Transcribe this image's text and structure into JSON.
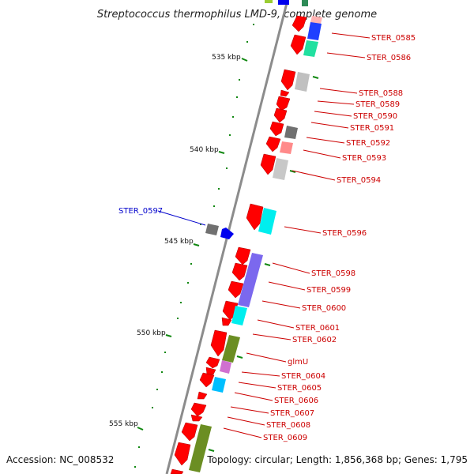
{
  "title": "Streptococcus thermophilus LMD-9, complete genome",
  "footer": {
    "accession": "Accession: NC_008532",
    "summary": "Topology: circular; Length: 1,856,368 bp; Genes: 1,795"
  },
  "colors": {
    "backbone": "#8c8c8c",
    "forward_gene": "#ff0000",
    "reverse_label": "#0000cc",
    "forward_label": "#cc0000",
    "tick": "#118811"
  },
  "kbp_ticks": [
    {
      "label": "535 kbp"
    },
    {
      "label": "540 kbp"
    },
    {
      "label": "545 kbp"
    },
    {
      "label": "550 kbp"
    },
    {
      "label": "555 kbp"
    }
  ],
  "genes": [
    {
      "label": "STER_0585",
      "strand": "forward"
    },
    {
      "label": "STER_0586",
      "strand": "forward"
    },
    {
      "label": "STER_0588",
      "strand": "forward"
    },
    {
      "label": "STER_0589",
      "strand": "forward"
    },
    {
      "label": "STER_0590",
      "strand": "forward"
    },
    {
      "label": "STER_0591",
      "strand": "forward"
    },
    {
      "label": "STER_0592",
      "strand": "forward"
    },
    {
      "label": "STER_0593",
      "strand": "forward"
    },
    {
      "label": "STER_0594",
      "strand": "forward"
    },
    {
      "label": "STER_0597",
      "strand": "reverse"
    },
    {
      "label": "STER_0596",
      "strand": "forward"
    },
    {
      "label": "STER_0598",
      "strand": "forward"
    },
    {
      "label": "STER_0599",
      "strand": "forward"
    },
    {
      "label": "STER_0600",
      "strand": "forward"
    },
    {
      "label": "STER_0601",
      "strand": "forward"
    },
    {
      "label": "STER_0602",
      "strand": "forward"
    },
    {
      "label": "glmU",
      "strand": "forward"
    },
    {
      "label": "STER_0604",
      "strand": "forward"
    },
    {
      "label": "STER_0605",
      "strand": "forward"
    },
    {
      "label": "STER_0606",
      "strand": "forward"
    },
    {
      "label": "STER_0607",
      "strand": "forward"
    },
    {
      "label": "STER_0608",
      "strand": "forward"
    },
    {
      "label": "STER_0609",
      "strand": "forward"
    }
  ],
  "cog_blocks": [
    {
      "color": "#ffb3b3"
    },
    {
      "color": "#2040ff"
    },
    {
      "color": "#22e0a0"
    },
    {
      "color": "#c0c0c0"
    },
    {
      "color": "#707070"
    },
    {
      "color": "#ff8a8a"
    },
    {
      "color": "#c8c8c8"
    },
    {
      "color": "#00eeee"
    },
    {
      "color": "#7b68ee"
    },
    {
      "color": "#00eeee"
    },
    {
      "color": "#6b8e23"
    },
    {
      "color": "#d070d0"
    },
    {
      "color": "#00bfff"
    },
    {
      "color": "#6b8e23"
    }
  ]
}
